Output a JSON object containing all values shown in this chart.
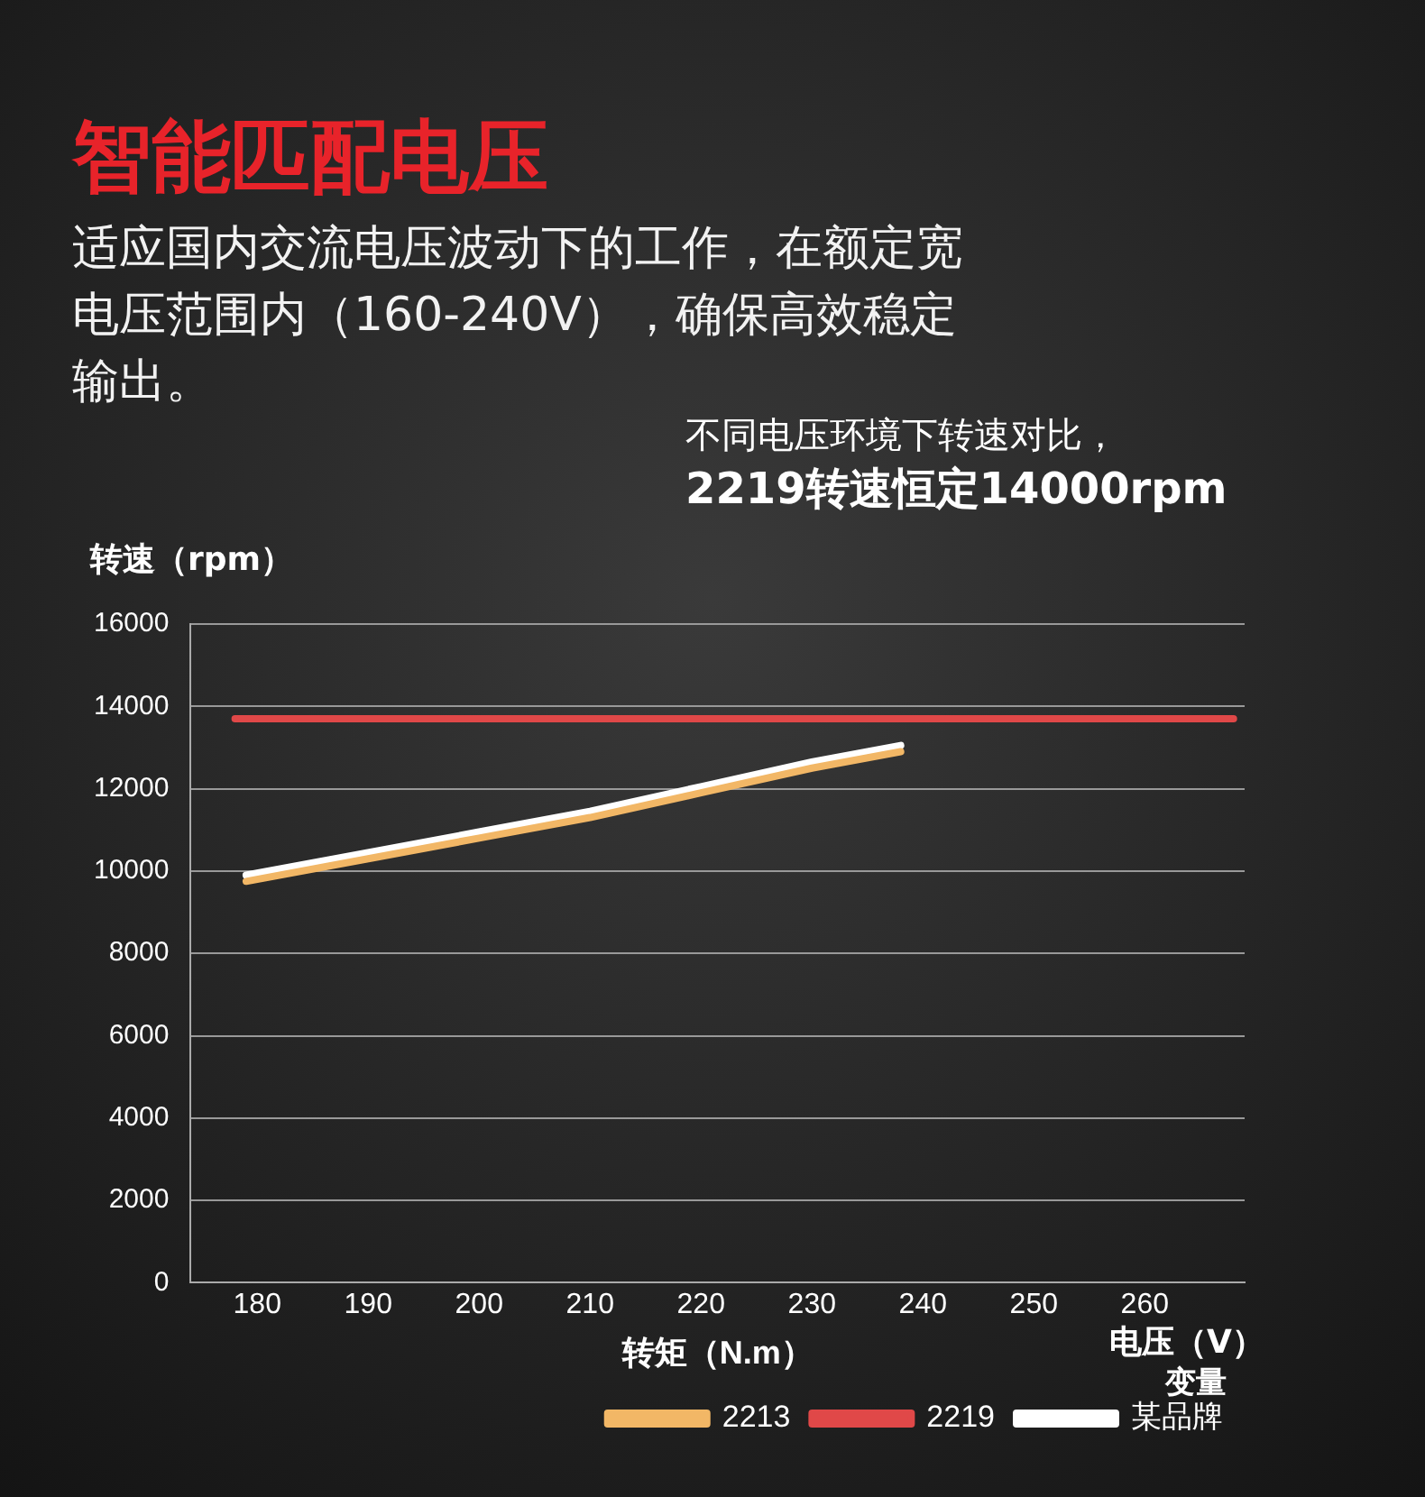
{
  "chart_data": {
    "type": "line",
    "title": "智能匹配电压",
    "subtitle": "适应国内交流电压波动下的工作，在额定宽电压范围内（160-240V），确保高效稳定输出。",
    "annotations": [
      "不同电压环境下转速对比，",
      "2219转速恒定14000rpm",
      "电压（V）"
    ],
    "xlabel": "转矩（N.m）",
    "ylabel": "转速（rpm）",
    "legend_title": "变量",
    "legend": "bottom right",
    "grid": "y",
    "marker": "none",
    "line_style": "solid",
    "xlim": [
      174,
      269
    ],
    "xticks": [
      180,
      190,
      200,
      210,
      220,
      230,
      240,
      250,
      260
    ],
    "ylim": [
      0,
      16000
    ],
    "yticks": [
      0,
      2000,
      4000,
      6000,
      8000,
      10000,
      12000,
      14000,
      16000
    ],
    "series": [
      {
        "name": "2213",
        "color": "#f2b766",
        "x": [
          179,
          190,
          200,
          210,
          220,
          230,
          238
        ],
        "values": [
          9750,
          10300,
          10800,
          11300,
          11900,
          12500,
          12900
        ]
      },
      {
        "name": "2219",
        "color": "#e04848",
        "x": [
          178,
          268
        ],
        "values": [
          13700,
          13700
        ]
      },
      {
        "name": "某品牌",
        "color": "#ffffff",
        "x": [
          179,
          190,
          200,
          210,
          220,
          230,
          238
        ],
        "values": [
          9900,
          10450,
          10950,
          11450,
          12050,
          12650,
          13050
        ]
      }
    ]
  }
}
